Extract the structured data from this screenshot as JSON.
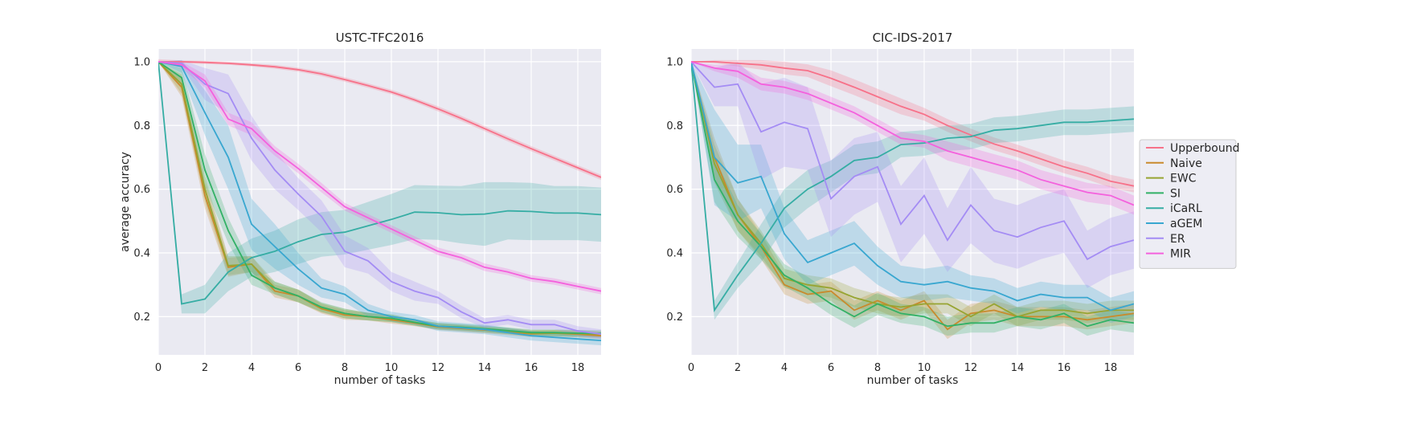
{
  "chart_data": [
    {
      "type": "line",
      "title": "USTC-TFC2016",
      "xlabel": "number of tasks",
      "ylabel": "average accuracy",
      "xlim": [
        0,
        19
      ],
      "ylim": [
        0.08,
        1.04
      ],
      "xticks": [
        0,
        2,
        4,
        6,
        8,
        10,
        12,
        14,
        16,
        18
      ],
      "yticks": [
        0.2,
        0.4,
        0.6,
        0.8,
        1.0
      ],
      "grid": true,
      "x": [
        0,
        1,
        2,
        3,
        4,
        5,
        6,
        7,
        8,
        9,
        10,
        11,
        12,
        13,
        14,
        15,
        16,
        17,
        18,
        19
      ],
      "series": [
        {
          "name": "Upperbound",
          "color": "#f77189",
          "values": [
            1.0,
            1.0,
            0.998,
            0.995,
            0.99,
            0.984,
            0.975,
            0.962,
            0.944,
            0.925,
            0.905,
            0.88,
            0.852,
            0.822,
            0.79,
            0.758,
            0.727,
            0.697,
            0.667,
            0.637
          ],
          "band": [
            0.008,
            0.004,
            0.005,
            0.005,
            0.005,
            0.006,
            0.006,
            0.007,
            0.007,
            0.007,
            0.007,
            0.007,
            0.008,
            0.008,
            0.008,
            0.008,
            0.008,
            0.008,
            0.008,
            0.008
          ]
        },
        {
          "name": "Naive",
          "color": "#c98a2d",
          "values": [
            1.0,
            0.92,
            0.58,
            0.355,
            0.365,
            0.28,
            0.265,
            0.225,
            0.205,
            0.2,
            0.19,
            0.18,
            0.168,
            0.163,
            0.158,
            0.152,
            0.146,
            0.148,
            0.145,
            0.14
          ],
          "band": [
            0.0,
            0.03,
            0.04,
            0.03,
            0.025,
            0.02,
            0.02,
            0.015,
            0.015,
            0.012,
            0.012,
            0.01,
            0.01,
            0.01,
            0.01,
            0.01,
            0.01,
            0.01,
            0.01,
            0.01
          ]
        },
        {
          "name": "EWC",
          "color": "#97a431",
          "values": [
            1.0,
            0.93,
            0.6,
            0.36,
            0.365,
            0.29,
            0.265,
            0.228,
            0.21,
            0.2,
            0.195,
            0.182,
            0.17,
            0.165,
            0.16,
            0.155,
            0.148,
            0.148,
            0.147,
            0.145
          ],
          "band": [
            0.0,
            0.03,
            0.04,
            0.03,
            0.025,
            0.02,
            0.02,
            0.015,
            0.015,
            0.012,
            0.012,
            0.01,
            0.01,
            0.01,
            0.01,
            0.01,
            0.01,
            0.01,
            0.01,
            0.01
          ]
        },
        {
          "name": "SI",
          "color": "#32b166",
          "values": [
            1.0,
            0.95,
            0.66,
            0.47,
            0.33,
            0.29,
            0.265,
            0.23,
            0.21,
            0.2,
            0.195,
            0.182,
            0.17,
            0.167,
            0.162,
            0.156,
            0.15,
            0.15,
            0.148,
            0.147
          ],
          "band": [
            0.0,
            0.03,
            0.05,
            0.04,
            0.03,
            0.02,
            0.02,
            0.015,
            0.015,
            0.012,
            0.012,
            0.01,
            0.01,
            0.01,
            0.01,
            0.01,
            0.01,
            0.01,
            0.01,
            0.01
          ]
        },
        {
          "name": "iCaRL",
          "color": "#36ada4",
          "values": [
            1.0,
            0.24,
            0.255,
            0.34,
            0.385,
            0.405,
            0.435,
            0.458,
            0.465,
            0.485,
            0.505,
            0.528,
            0.526,
            0.52,
            0.522,
            0.532,
            0.53,
            0.525,
            0.525,
            0.52
          ],
          "band": [
            0.0,
            0.03,
            0.045,
            0.06,
            0.06,
            0.065,
            0.07,
            0.07,
            0.07,
            0.075,
            0.08,
            0.085,
            0.085,
            0.09,
            0.1,
            0.09,
            0.09,
            0.085,
            0.085,
            0.085
          ]
        },
        {
          "name": "aGEM",
          "color": "#39a7d0",
          "values": [
            1.0,
            0.985,
            0.84,
            0.7,
            0.49,
            0.42,
            0.35,
            0.29,
            0.27,
            0.22,
            0.2,
            0.19,
            0.17,
            0.165,
            0.16,
            0.15,
            0.14,
            0.135,
            0.13,
            0.125
          ],
          "band": [
            0.0,
            0.02,
            0.07,
            0.1,
            0.08,
            0.07,
            0.05,
            0.03,
            0.025,
            0.02,
            0.015,
            0.015,
            0.015,
            0.015,
            0.015,
            0.015,
            0.015,
            0.015,
            0.015,
            0.015
          ]
        },
        {
          "name": "ER",
          "color": "#a48cf4",
          "values": [
            1.0,
            0.995,
            0.93,
            0.9,
            0.76,
            0.66,
            0.585,
            0.515,
            0.405,
            0.375,
            0.31,
            0.28,
            0.26,
            0.215,
            0.18,
            0.19,
            0.175,
            0.175,
            0.155,
            0.145
          ],
          "band": [
            0.0,
            0.01,
            0.05,
            0.06,
            0.07,
            0.06,
            0.05,
            0.05,
            0.05,
            0.04,
            0.03,
            0.03,
            0.02,
            0.02,
            0.015,
            0.015,
            0.015,
            0.015,
            0.015,
            0.015
          ]
        },
        {
          "name": "MIR",
          "color": "#f461dd",
          "values": [
            1.0,
            0.99,
            0.94,
            0.82,
            0.79,
            0.72,
            0.665,
            0.605,
            0.545,
            0.51,
            0.475,
            0.44,
            0.405,
            0.385,
            0.355,
            0.34,
            0.32,
            0.31,
            0.295,
            0.28
          ],
          "band": [
            0.0,
            0.01,
            0.02,
            0.02,
            0.02,
            0.015,
            0.015,
            0.015,
            0.012,
            0.012,
            0.012,
            0.012,
            0.012,
            0.012,
            0.012,
            0.01,
            0.01,
            0.01,
            0.01,
            0.01
          ]
        }
      ]
    },
    {
      "type": "line",
      "title": "CIC-IDS-2017",
      "xlabel": "number of tasks",
      "ylabel": "",
      "xlim": [
        0,
        19
      ],
      "ylim": [
        0.08,
        1.04
      ],
      "xticks": [
        0,
        2,
        4,
        6,
        8,
        10,
        12,
        14,
        16,
        18
      ],
      "yticks": [
        0.2,
        0.4,
        0.6,
        0.8,
        1.0
      ],
      "grid": true,
      "legend": "outside-right",
      "x": [
        0,
        1,
        2,
        3,
        4,
        5,
        6,
        7,
        8,
        9,
        10,
        11,
        12,
        13,
        14,
        15,
        16,
        17,
        18,
        19
      ],
      "series": [
        {
          "name": "Upperbound",
          "color": "#f77189",
          "values": [
            1.0,
            1.0,
            0.995,
            0.99,
            0.98,
            0.972,
            0.948,
            0.92,
            0.89,
            0.86,
            0.835,
            0.8,
            0.77,
            0.742,
            0.72,
            0.695,
            0.67,
            0.65,
            0.625,
            0.61
          ],
          "band": [
            0.0,
            0.005,
            0.01,
            0.015,
            0.02,
            0.02,
            0.025,
            0.025,
            0.025,
            0.025,
            0.02,
            0.02,
            0.02,
            0.02,
            0.02,
            0.02,
            0.02,
            0.02,
            0.02,
            0.02
          ]
        },
        {
          "name": "Naive",
          "color": "#c98a2d",
          "values": [
            1.0,
            0.7,
            0.52,
            0.42,
            0.3,
            0.27,
            0.28,
            0.22,
            0.25,
            0.22,
            0.25,
            0.16,
            0.21,
            0.22,
            0.2,
            0.2,
            0.2,
            0.19,
            0.2,
            0.21
          ],
          "band": [
            0.0,
            0.06,
            0.05,
            0.04,
            0.03,
            0.03,
            0.03,
            0.03,
            0.03,
            0.03,
            0.03,
            0.03,
            0.03,
            0.03,
            0.03,
            0.03,
            0.03,
            0.03,
            0.03,
            0.03
          ]
        },
        {
          "name": "EWC",
          "color": "#97a431",
          "values": [
            1.0,
            0.68,
            0.52,
            0.43,
            0.32,
            0.3,
            0.29,
            0.26,
            0.24,
            0.23,
            0.24,
            0.24,
            0.2,
            0.24,
            0.2,
            0.22,
            0.22,
            0.21,
            0.22,
            0.22
          ],
          "band": [
            0.0,
            0.06,
            0.05,
            0.04,
            0.03,
            0.03,
            0.03,
            0.03,
            0.03,
            0.03,
            0.03,
            0.03,
            0.03,
            0.03,
            0.03,
            0.03,
            0.03,
            0.03,
            0.03,
            0.03
          ]
        },
        {
          "name": "SI",
          "color": "#32b166",
          "values": [
            1.0,
            0.63,
            0.5,
            0.42,
            0.33,
            0.29,
            0.24,
            0.2,
            0.24,
            0.21,
            0.2,
            0.17,
            0.18,
            0.18,
            0.2,
            0.19,
            0.21,
            0.17,
            0.19,
            0.18
          ],
          "band": [
            0.0,
            0.07,
            0.05,
            0.04,
            0.035,
            0.035,
            0.035,
            0.035,
            0.035,
            0.03,
            0.03,
            0.03,
            0.03,
            0.03,
            0.03,
            0.03,
            0.03,
            0.03,
            0.03,
            0.03
          ]
        },
        {
          "name": "iCaRL",
          "color": "#36ada4",
          "values": [
            1.0,
            0.22,
            0.33,
            0.43,
            0.54,
            0.6,
            0.64,
            0.69,
            0.7,
            0.74,
            0.745,
            0.76,
            0.765,
            0.785,
            0.79,
            0.8,
            0.81,
            0.81,
            0.815,
            0.82
          ],
          "band": [
            0.0,
            0.03,
            0.04,
            0.06,
            0.06,
            0.06,
            0.05,
            0.05,
            0.05,
            0.04,
            0.04,
            0.04,
            0.04,
            0.04,
            0.04,
            0.04,
            0.04,
            0.04,
            0.04,
            0.04
          ]
        },
        {
          "name": "aGEM",
          "color": "#39a7d0",
          "values": [
            1.0,
            0.7,
            0.62,
            0.64,
            0.46,
            0.37,
            0.4,
            0.43,
            0.36,
            0.31,
            0.3,
            0.31,
            0.29,
            0.28,
            0.25,
            0.27,
            0.26,
            0.26,
            0.22,
            0.24
          ],
          "band": [
            0.0,
            0.15,
            0.12,
            0.1,
            0.08,
            0.07,
            0.07,
            0.07,
            0.06,
            0.05,
            0.05,
            0.05,
            0.04,
            0.04,
            0.04,
            0.04,
            0.04,
            0.04,
            0.04,
            0.04
          ]
        },
        {
          "name": "ER",
          "color": "#a48cf4",
          "values": [
            1.0,
            0.92,
            0.93,
            0.78,
            0.81,
            0.79,
            0.57,
            0.64,
            0.67,
            0.49,
            0.58,
            0.44,
            0.55,
            0.47,
            0.45,
            0.48,
            0.5,
            0.38,
            0.42,
            0.44
          ],
          "band": [
            0.0,
            0.06,
            0.07,
            0.15,
            0.14,
            0.13,
            0.12,
            0.12,
            0.11,
            0.12,
            0.12,
            0.1,
            0.12,
            0.1,
            0.1,
            0.1,
            0.1,
            0.09,
            0.09,
            0.09
          ]
        },
        {
          "name": "MIR",
          "color": "#f461dd",
          "values": [
            1.0,
            0.98,
            0.97,
            0.93,
            0.92,
            0.9,
            0.87,
            0.84,
            0.8,
            0.76,
            0.75,
            0.72,
            0.7,
            0.68,
            0.66,
            0.63,
            0.61,
            0.59,
            0.58,
            0.55
          ],
          "band": [
            0.0,
            0.01,
            0.02,
            0.02,
            0.02,
            0.02,
            0.02,
            0.02,
            0.02,
            0.02,
            0.02,
            0.03,
            0.03,
            0.03,
            0.03,
            0.03,
            0.03,
            0.03,
            0.03,
            0.03
          ]
        }
      ]
    }
  ]
}
